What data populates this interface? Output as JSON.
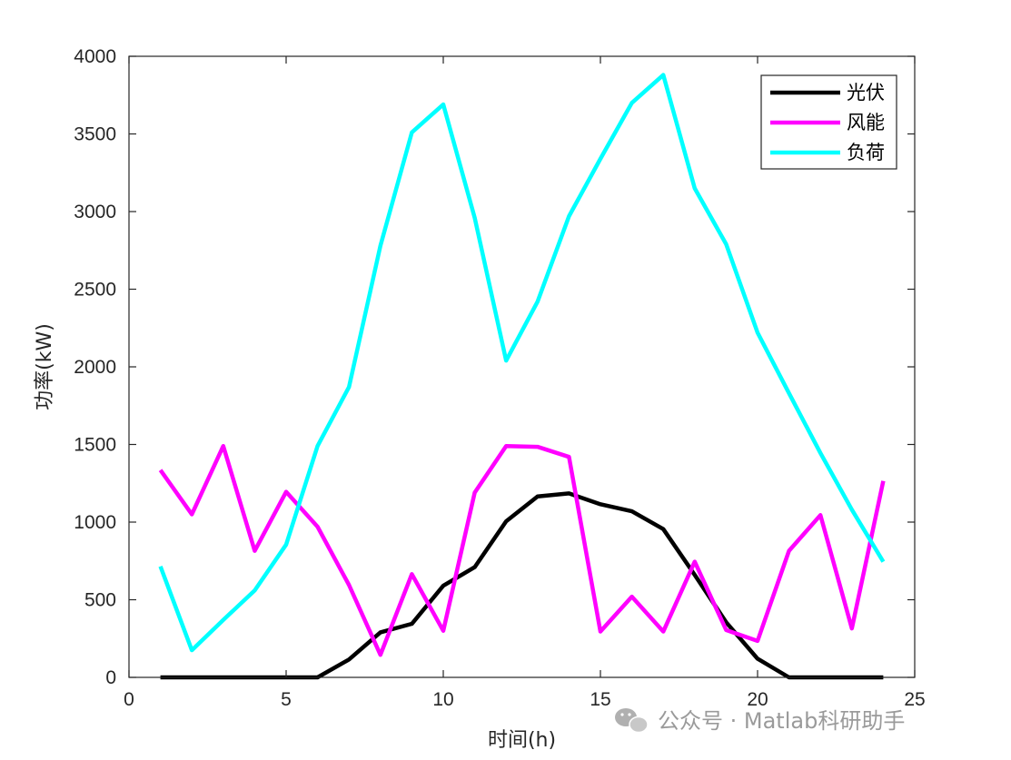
{
  "chart_data": {
    "type": "line",
    "xlabel": "时间(h)",
    "ylabel": "功率(kW)",
    "xlim": [
      0,
      25
    ],
    "ylim": [
      0,
      4000
    ],
    "xticks": [
      "0",
      "5",
      "10",
      "15",
      "20",
      "25"
    ],
    "yticks": [
      "0",
      "500",
      "1000",
      "1500",
      "2000",
      "2500",
      "3000",
      "3500",
      "4000"
    ],
    "grid": false,
    "legend_position": "top-right",
    "x": [
      1,
      2,
      3,
      4,
      5,
      6,
      7,
      8,
      9,
      10,
      11,
      12,
      13,
      14,
      15,
      16,
      17,
      18,
      19,
      20,
      21,
      22,
      23,
      24
    ],
    "series": [
      {
        "name": "光伏",
        "color": "#000000",
        "values": [
          0,
          0,
          0,
          0,
          0,
          0,
          115,
          290,
          345,
          590,
          710,
          1005,
          1165,
          1185,
          1115,
          1070,
          955,
          660,
          355,
          120,
          0,
          0,
          0,
          0
        ]
      },
      {
        "name": "风能",
        "color": "#ff00ff",
        "values": [
          1335,
          1050,
          1490,
          815,
          1195,
          970,
          595,
          145,
          665,
          300,
          1190,
          1490,
          1485,
          1420,
          295,
          520,
          295,
          745,
          305,
          235,
          815,
          1045,
          315,
          1265
        ]
      },
      {
        "name": "负荷",
        "color": "#00ffff",
        "values": [
          715,
          175,
          370,
          560,
          855,
          1490,
          1870,
          2780,
          3510,
          3690,
          2960,
          2040,
          2420,
          2970,
          3340,
          3700,
          3880,
          3150,
          2790,
          2220,
          1830,
          1445,
          1080,
          745
        ]
      }
    ]
  },
  "watermark": {
    "text": "公众号 · Matlab科研助手",
    "icon": "wechat-icon"
  }
}
